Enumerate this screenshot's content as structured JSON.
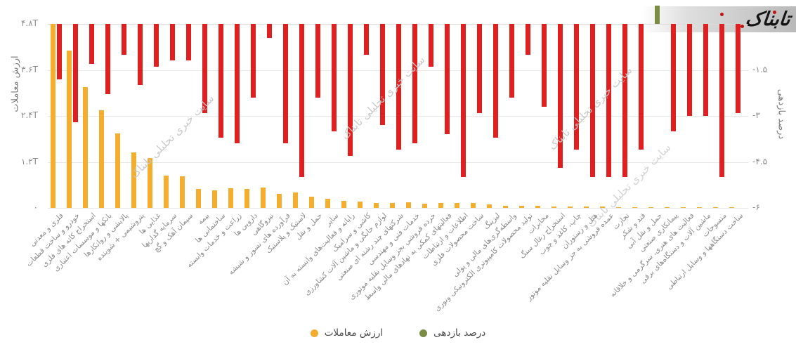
{
  "logo": {
    "text": "تابناک"
  },
  "watermark_text": "سایت خبری تحلیلی تابناک",
  "axes": {
    "left_title": "ارزش معاملات",
    "right_title": "درصد بازدهی",
    "left_ticks": [
      "۴.۸T",
      "۳.۶T",
      "۲.۴T",
      "۱.۲T",
      "۰"
    ],
    "right_ticks": [
      "-۱.۵",
      "-۳",
      "-۴.۵",
      "-۶"
    ]
  },
  "legend": [
    {
      "label": "ارزش معاملات",
      "color": "#F5AD2E"
    },
    {
      "label": "درصد بازدهی",
      "color": "#7B8D42"
    }
  ],
  "colors": {
    "value_bar": "#F5AD2E",
    "return_negative": "#E01F1F",
    "return_positive": "#7B8D42",
    "watermark": "#c7c7c7"
  },
  "chart_data": {
    "type": "bar",
    "title": "",
    "xlabel": "",
    "left_axis": {
      "label": "ارزش معاملات",
      "range": [
        0,
        4.8
      ],
      "unit": "T"
    },
    "right_axis": {
      "label": "درصد بازدهی",
      "range": [
        -6,
        0.75
      ],
      "unit": "%"
    },
    "grid": true,
    "legend_position": "bottom-center",
    "categories": [
      "فلزی و معدنی",
      "خودرو و ساخت قطعات",
      "استخراج کانه های فلزی",
      "بانکها و موسسات اعتباری",
      "پالایشی و روانکارها",
      "پتروشیمی + شوینده",
      "غذایی ها",
      "سرمایه گذاریها",
      "سیمان آهک و گچ",
      "بیمه",
      "ساختمانی ها",
      "زراعت و خدمات وابسته",
      "دارویی ها",
      "نیروگاهی",
      "فرآورده های نسوز و شیشه",
      "لاستیک و پلاستیک",
      "حمل و نقل",
      "سایر",
      "رایانه و فعالیت‌های وابسته به آن",
      "کاشی و سرامیک",
      "لوازم خانگی و ماشین آلات کشاورزی",
      "شرکتهای چند رشته ای صنعتی",
      "خدمات فنی و مهندسی",
      "خرده فروشی بجز وسایل نقلیه موتوری",
      "فعالیتهای کمکی به نهادهای مالی واسط",
      "اطلاعات و ارتباطات",
      "ساخت محصولات فلزی",
      "لیزینگ",
      "واسطه‌گری‌های مالی و پولی",
      "تولید محصولات کامپیوتری الکترونیکی ونوری",
      "مخابرات",
      "استخراج زغال سنگ",
      "چاپ، کاغذ و چوب",
      "هتل و رستوران",
      "عمده فروشی به جز وسایل نقلیه موتور",
      "تجارت",
      "قند و شکر",
      "حمل و نقل آبی",
      "پیمانکاری صنعتی",
      "فعالیت های هنری، سرگرمی و خلاقانه",
      "ماشین آلات و دستگاه‌های برقی",
      "منسوجات",
      "ساخت دستگاهها و وسایل ارتباطی"
    ],
    "series": [
      {
        "name": "ارزش معاملات",
        "axis": "left",
        "color": "#F5AD2E",
        "values": [
          4.8,
          4.1,
          3.15,
          2.55,
          1.95,
          1.45,
          1.3,
          0.85,
          0.82,
          0.5,
          0.46,
          0.51,
          0.49,
          0.53,
          0.36,
          0.4,
          0.29,
          0.24,
          0.18,
          0.16,
          0.13,
          0.12,
          0.14,
          0.11,
          0.13,
          0.12,
          0.13,
          0.1,
          0.06,
          0.05,
          0.05,
          0.04,
          0.04,
          0.03,
          0.03,
          0.02,
          0.02,
          0.015,
          0.015,
          0.01,
          0.01,
          0.008,
          0.005
        ]
      },
      {
        "name": "درصد بازدهی",
        "axis": "right",
        "color_negative": "#E01F1F",
        "color_positive": "#7B8D42",
        "values": [
          -1.8,
          -3.2,
          -1.3,
          -2.3,
          -1.0,
          -2.0,
          -1.4,
          -1.2,
          -1.2,
          -2.9,
          -3.7,
          -3.9,
          -2.4,
          -0.45,
          -3.9,
          -5.0,
          -2.4,
          -3.5,
          -4.3,
          -1.0,
          -3.3,
          -4.1,
          -3.9,
          -1.4,
          -3.6,
          -5.0,
          -2.9,
          -3.7,
          -2.4,
          -1.0,
          -2.7,
          -4.7,
          -4.1,
          -5.0,
          -5.0,
          -5.0,
          -4.1,
          0.6,
          -3.5,
          -3.0,
          -3.0,
          -5.0,
          -2.9
        ]
      }
    ]
  }
}
